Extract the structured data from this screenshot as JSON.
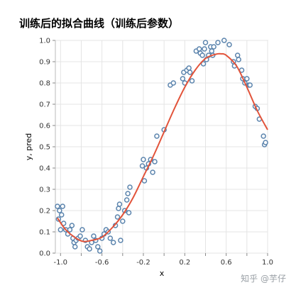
{
  "chart_data": {
    "type": "scatter",
    "title": "训练后的拟合曲线（训练后参数）",
    "xlabel": "x",
    "ylabel": "y, pred",
    "xlim": [
      -1.05,
      1.0
    ],
    "ylim": [
      0.0,
      1.0
    ],
    "x_ticks": [
      "-1.0",
      "-0.6",
      "-0.2",
      "0.2",
      "0.6",
      "1.0"
    ],
    "x_tick_values": [
      -1.0,
      -0.6,
      -0.2,
      0.2,
      0.6,
      1.0
    ],
    "y_ticks": [
      "0.0",
      "0.1",
      "0.2",
      "0.3",
      "0.4",
      "0.5",
      "0.6",
      "0.7",
      "0.8",
      "0.9",
      "1.0"
    ],
    "y_tick_values": [
      0.0,
      0.1,
      0.2,
      0.3,
      0.4,
      0.5,
      0.6,
      0.7,
      0.8,
      0.9,
      1.0
    ],
    "grid": true,
    "series": [
      {
        "kind": "points",
        "color": "#5b84ad",
        "points": [
          [
            -1.03,
            0.22
          ],
          [
            -1.02,
            0.16
          ],
          [
            -1.01,
            0.2
          ],
          [
            -1.0,
            0.11
          ],
          [
            -0.99,
            0.18
          ],
          [
            -0.98,
            0.22
          ],
          [
            -0.97,
            0.14
          ],
          [
            -0.95,
            0.11
          ],
          [
            -0.93,
            0.09
          ],
          [
            -0.91,
            0.11
          ],
          [
            -0.89,
            0.13
          ],
          [
            -0.88,
            0.07
          ],
          [
            -0.87,
            0.05
          ],
          [
            -0.86,
            0.03
          ],
          [
            -0.85,
            0.06
          ],
          [
            -0.83,
            0.07
          ],
          [
            -0.81,
            0.08
          ],
          [
            -0.79,
            0.11
          ],
          [
            -0.76,
            0.06
          ],
          [
            -0.74,
            0.03
          ],
          [
            -0.72,
            0.02
          ],
          [
            -0.7,
            0.05
          ],
          [
            -0.68,
            0.08
          ],
          [
            -0.66,
            0.06
          ],
          [
            -0.64,
            0.03
          ],
          [
            -0.62,
            0.01
          ],
          [
            -0.6,
            0.07
          ],
          [
            -0.58,
            0.09
          ],
          [
            -0.56,
            0.11
          ],
          [
            -0.54,
            0.1
          ],
          [
            -0.52,
            0.07
          ],
          [
            -0.49,
            0.05
          ],
          [
            -0.47,
            0.13
          ],
          [
            -0.45,
            0.17
          ],
          [
            -0.44,
            0.21
          ],
          [
            -0.43,
            0.23
          ],
          [
            -0.42,
            0.06
          ],
          [
            -0.4,
            0.15
          ],
          [
            -0.38,
            0.2
          ],
          [
            -0.36,
            0.25
          ],
          [
            -0.35,
            0.28
          ],
          [
            -0.34,
            0.19
          ],
          [
            -0.33,
            0.31
          ],
          [
            -0.21,
            0.41
          ],
          [
            -0.2,
            0.44
          ],
          [
            -0.19,
            0.34
          ],
          [
            -0.17,
            0.4
          ],
          [
            -0.15,
            0.42
          ],
          [
            -0.13,
            0.44
          ],
          [
            -0.11,
            0.38
          ],
          [
            -0.09,
            0.43
          ],
          [
            -0.07,
            0.55
          ],
          [
            0.0,
            0.58
          ],
          [
            0.06,
            0.79
          ],
          [
            0.09,
            0.8
          ],
          [
            0.18,
            0.82
          ],
          [
            0.19,
            0.85
          ],
          [
            0.2,
            0.8
          ],
          [
            0.22,
            0.86
          ],
          [
            0.24,
            0.87
          ],
          [
            0.25,
            0.85
          ],
          [
            0.27,
            0.81
          ],
          [
            0.31,
            0.95
          ],
          [
            0.34,
            0.96
          ],
          [
            0.35,
            0.94
          ],
          [
            0.37,
            0.93
          ],
          [
            0.38,
            0.89
          ],
          [
            0.39,
            0.96
          ],
          [
            0.4,
            0.99
          ],
          [
            0.41,
            0.91
          ],
          [
            0.43,
            0.93
          ],
          [
            0.45,
            0.97
          ],
          [
            0.46,
            0.95
          ],
          [
            0.47,
            0.93
          ],
          [
            0.48,
            0.97
          ],
          [
            0.52,
            0.99
          ],
          [
            0.58,
            1.0
          ],
          [
            0.63,
            0.98
          ],
          [
            0.67,
            0.9
          ],
          [
            0.68,
            0.88
          ],
          [
            0.71,
            0.93
          ],
          [
            0.72,
            0.91
          ],
          [
            0.75,
            0.86
          ],
          [
            0.76,
            0.82
          ],
          [
            0.78,
            0.8
          ],
          [
            0.8,
            0.82
          ],
          [
            0.82,
            0.79
          ],
          [
            0.83,
            0.79
          ],
          [
            0.88,
            0.69
          ],
          [
            0.9,
            0.68
          ],
          [
            0.92,
            0.63
          ],
          [
            0.96,
            0.55
          ],
          [
            0.97,
            0.51
          ],
          [
            0.98,
            0.52
          ]
        ]
      },
      {
        "kind": "line",
        "color": "#e2533a",
        "points": [
          [
            -1.03,
            0.165
          ],
          [
            -0.95,
            0.11
          ],
          [
            -0.85,
            0.07
          ],
          [
            -0.78,
            0.055
          ],
          [
            -0.7,
            0.06
          ],
          [
            -0.6,
            0.075
          ],
          [
            -0.5,
            0.12
          ],
          [
            -0.4,
            0.18
          ],
          [
            -0.3,
            0.26
          ],
          [
            -0.2,
            0.36
          ],
          [
            -0.1,
            0.46
          ],
          [
            0.0,
            0.57
          ],
          [
            0.1,
            0.68
          ],
          [
            0.2,
            0.78
          ],
          [
            0.3,
            0.86
          ],
          [
            0.4,
            0.915
          ],
          [
            0.5,
            0.935
          ],
          [
            0.55,
            0.937
          ],
          [
            0.6,
            0.93
          ],
          [
            0.7,
            0.88
          ],
          [
            0.8,
            0.78
          ],
          [
            0.9,
            0.67
          ],
          [
            1.0,
            0.58
          ]
        ]
      }
    ]
  },
  "watermark": "知乎 @芋仔"
}
